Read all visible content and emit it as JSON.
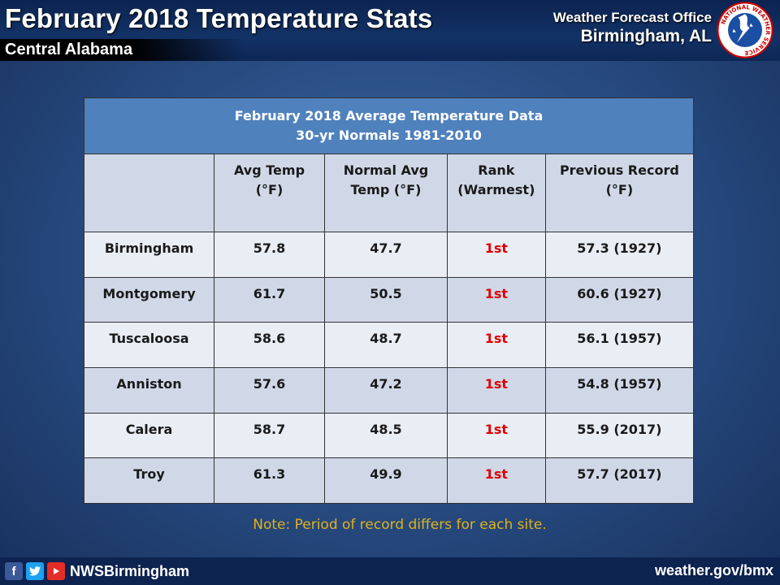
{
  "header": {
    "title": "February 2018 Temperature Stats",
    "subtitle": "Central Alabama",
    "office_line1": "Weather Forecast Office",
    "office_line2": "Birmingham, AL",
    "logo_text": "NATIONAL WEATHER SERVICE",
    "logo_icon": "nws-logo-icon"
  },
  "table": {
    "caption_line1": "February 2018 Average Temperature Data",
    "caption_line2": "30-yr Normals 1981-2010",
    "headers": [
      {
        "line1": "",
        "line2": ""
      },
      {
        "line1": "Avg Temp",
        "line2": "(°F)"
      },
      {
        "line1": "Normal Avg",
        "line2": "Temp (°F)"
      },
      {
        "line1": "Rank",
        "line2": "(Warmest)"
      },
      {
        "line1": "Previous Record",
        "line2": "(°F)"
      }
    ],
    "rows": [
      {
        "site": "Birmingham",
        "avg": "57.8",
        "normal": "47.7",
        "rank": "1st",
        "record": "57.3 (1927)"
      },
      {
        "site": "Montgomery",
        "avg": "61.7",
        "normal": "50.5",
        "rank": "1st",
        "record": "60.6 (1927)"
      },
      {
        "site": "Tuscaloosa",
        "avg": "58.6",
        "normal": "48.7",
        "rank": "1st",
        "record": "56.1 (1957)"
      },
      {
        "site": "Anniston",
        "avg": "57.6",
        "normal": "47.2",
        "rank": "1st",
        "record": "54.8 (1957)"
      },
      {
        "site": "Calera",
        "avg": "58.7",
        "normal": "48.5",
        "rank": "1st",
        "record": "55.9 (2017)"
      },
      {
        "site": "Troy",
        "avg": "61.3",
        "normal": "49.9",
        "rank": "1st",
        "record": "57.7 (2017)"
      }
    ]
  },
  "note": "Note: Period of record differs for each site.",
  "footer": {
    "handle": "NWSBirmingham",
    "website": "weather.gov/bmx",
    "icons": [
      "facebook-icon",
      "twitter-icon",
      "youtube-icon"
    ]
  },
  "colors": {
    "caption_bg": "#4f81bd",
    "header_bg": "#d0d8e8",
    "rank_text": "#e00000",
    "note_text": "#e0b21c"
  }
}
